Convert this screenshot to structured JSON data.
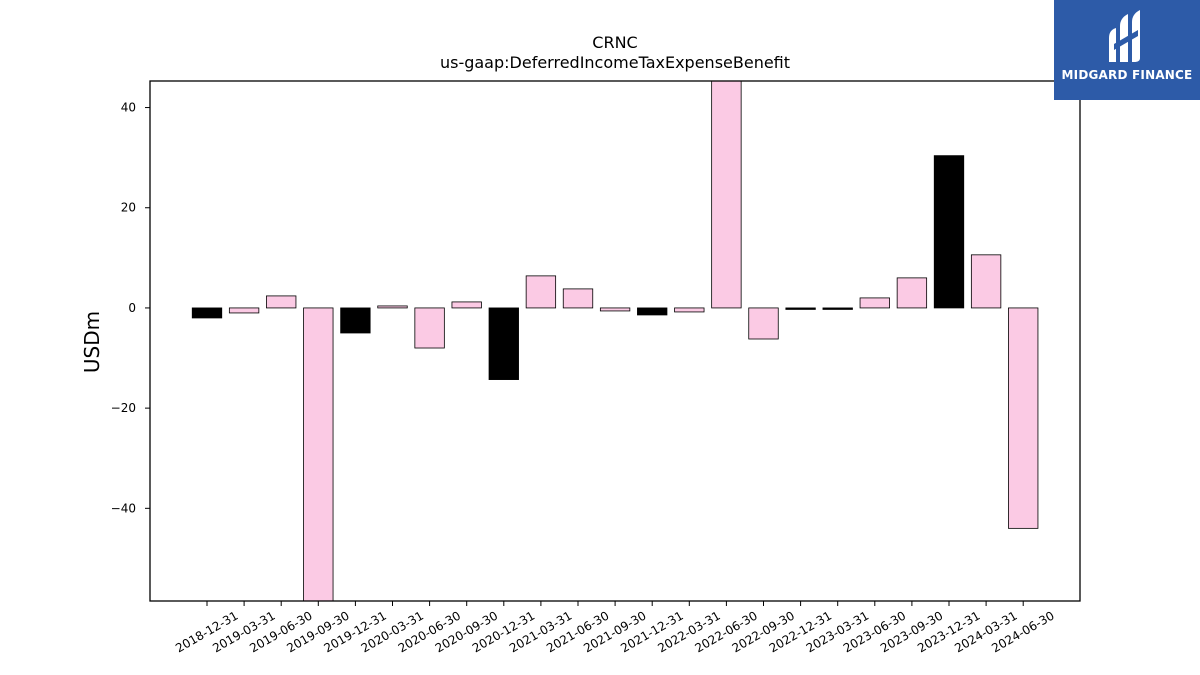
{
  "chart_data": {
    "type": "bar",
    "title": "CRNC",
    "subtitle": "us-gaap:DeferredIncomeTaxExpenseBenefit",
    "xlabel": "",
    "ylabel": "USDm",
    "ylim": [
      -58.5,
      45.3
    ],
    "yticks": [
      -40,
      -20,
      0,
      20,
      40
    ],
    "ytick_labels": [
      "−40",
      "−20",
      "0",
      "20",
      "40"
    ],
    "grid": false,
    "categories": [
      "2018-12-31",
      "2019-03-31",
      "2019-06-30",
      "2019-09-30",
      "2019-12-31",
      "2020-03-31",
      "2020-06-30",
      "2020-09-30",
      "2020-12-31",
      "2021-03-31",
      "2021-06-30",
      "2021-09-30",
      "2021-12-31",
      "2022-03-31",
      "2022-06-30",
      "2022-09-30",
      "2022-12-31",
      "2023-03-31",
      "2023-06-30",
      "2023-09-30",
      "2023-12-31",
      "2024-03-31",
      "2024-06-30"
    ],
    "values": [
      -2.0,
      -1.0,
      2.4,
      -59.0,
      -5.0,
      0.4,
      -8.0,
      1.2,
      -14.3,
      6.4,
      3.8,
      -0.6,
      -1.4,
      -0.8,
      46.0,
      -6.2,
      -0.3,
      -0.3,
      2.0,
      6.0,
      30.4,
      10.6,
      -44.0
    ],
    "colors": [
      "#000000",
      "#fbcae4",
      "#fbcae4",
      "#fbcae4",
      "#000000",
      "#fbcae4",
      "#fbcae4",
      "#fbcae4",
      "#000000",
      "#fbcae4",
      "#fbcae4",
      "#fbcae4",
      "#000000",
      "#fbcae4",
      "#fbcae4",
      "#fbcae4",
      "#000000",
      "#000000",
      "#fbcae4",
      "#fbcae4",
      "#000000",
      "#fbcae4",
      "#fbcae4"
    ]
  },
  "logo": {
    "text": "MIDGARD FINANCE",
    "background": "#2d5ba8",
    "icon": "midgard-logo-icon"
  }
}
